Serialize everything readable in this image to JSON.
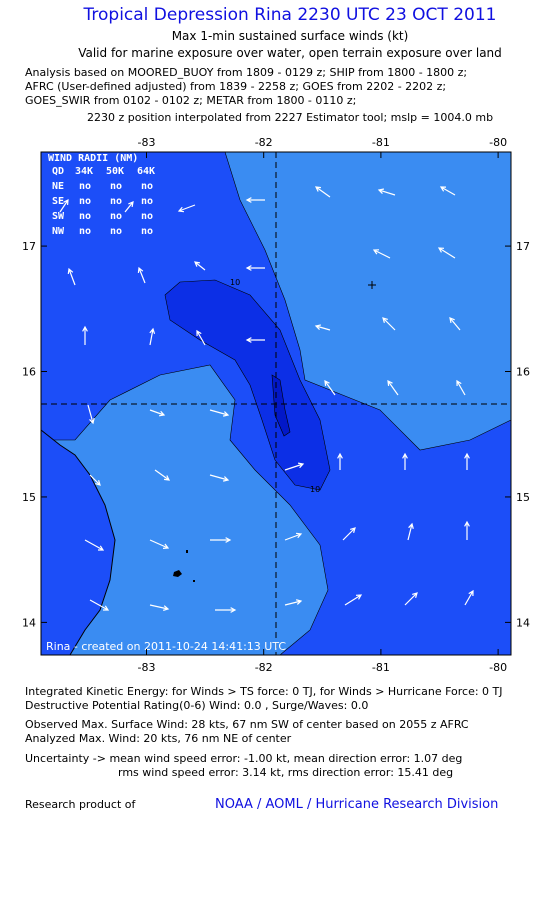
{
  "header": {
    "title": "Tropical Depression Rina 2230 UTC 23 OCT 2011",
    "subtitle": "Max 1-min sustained surface winds (kt)",
    "valid": "Valid for marine exposure over water, open terrain exposure over land",
    "analysis": [
      "Analysis based on MOORED_BUOY from 1809 - 0129 z; SHIP from 1800 - 1800 z;",
      "AFRC (User-defined adjusted) from 1839 - 2258 z; GOES from 2202 - 2202 z;",
      "GOES_SWIR from 0102 - 0102 z; METAR from 1800 - 0110 z;"
    ],
    "position_note": "2230 z position interpolated from 2227 Estimator tool; mslp = 1004.0 mb"
  },
  "map": {
    "xlim": [
      -83.9,
      -79.89
    ],
    "ylim": [
      13.74,
      17.75
    ],
    "xticks": [
      -83,
      -82,
      -81,
      -80
    ],
    "yticks": [
      14,
      15,
      16,
      17
    ],
    "contour_labels": [
      10,
      10
    ],
    "credit": "Rina - created on 2011-10-24 14:41:13 UTC",
    "wind_radii": {
      "title": "WIND RADII (NM)",
      "columns": [
        "QD",
        "34K",
        "50K",
        "64K"
      ],
      "rows": [
        [
          "NE",
          "no",
          "no",
          "no"
        ],
        [
          "SE",
          "no",
          "no",
          "no"
        ],
        [
          "SW",
          "no",
          "no",
          "no"
        ],
        [
          "NW",
          "no",
          "no",
          "no"
        ]
      ]
    }
  },
  "footer": {
    "lines": [
      "Integrated Kinetic Energy:  for Winds > TS force: 0 TJ,  for Winds > Hurricane Force: 0 TJ",
      "Destructive Potential Rating(0-6)   Wind: 0.0 , Surge/Waves: 0.0",
      "Observed Max. Surface Wind: 28 kts, 67 nm SW of center based on 2055 z AFRC",
      "Analyzed Max. Wind: 20 kts, 76 nm NE of center",
      "Uncertainty -> mean wind speed error:  -1.00 kt,   mean direction error: 1.07 deg",
      "rms wind speed error: 3.14 kt,   rms direction error: 15.41 deg"
    ],
    "research": "Research product of",
    "org": "NOAA / AOML / Hurricane Research Division"
  }
}
